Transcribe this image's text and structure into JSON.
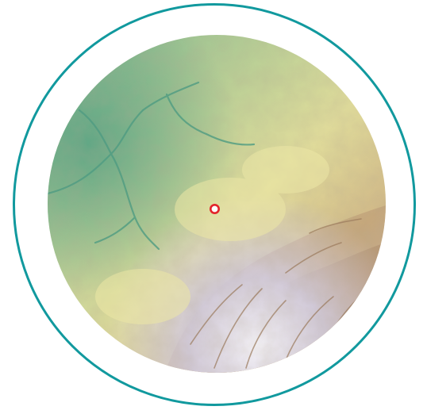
{
  "map": {
    "frame_color": "#11999e",
    "marker_color": "#e3242b",
    "hypsometric_palette": {
      "lowland": "#6fb089",
      "low_hills": "#a6c98f",
      "plain": "#d9dc9c",
      "upland": "#e2d794",
      "foothills": "#c7ab80",
      "mountain": "#a98868",
      "high_mountain": "#c9c3d6",
      "peaks": "#ece9f1"
    },
    "icons": {
      "marker": "location-pin-icon"
    }
  }
}
